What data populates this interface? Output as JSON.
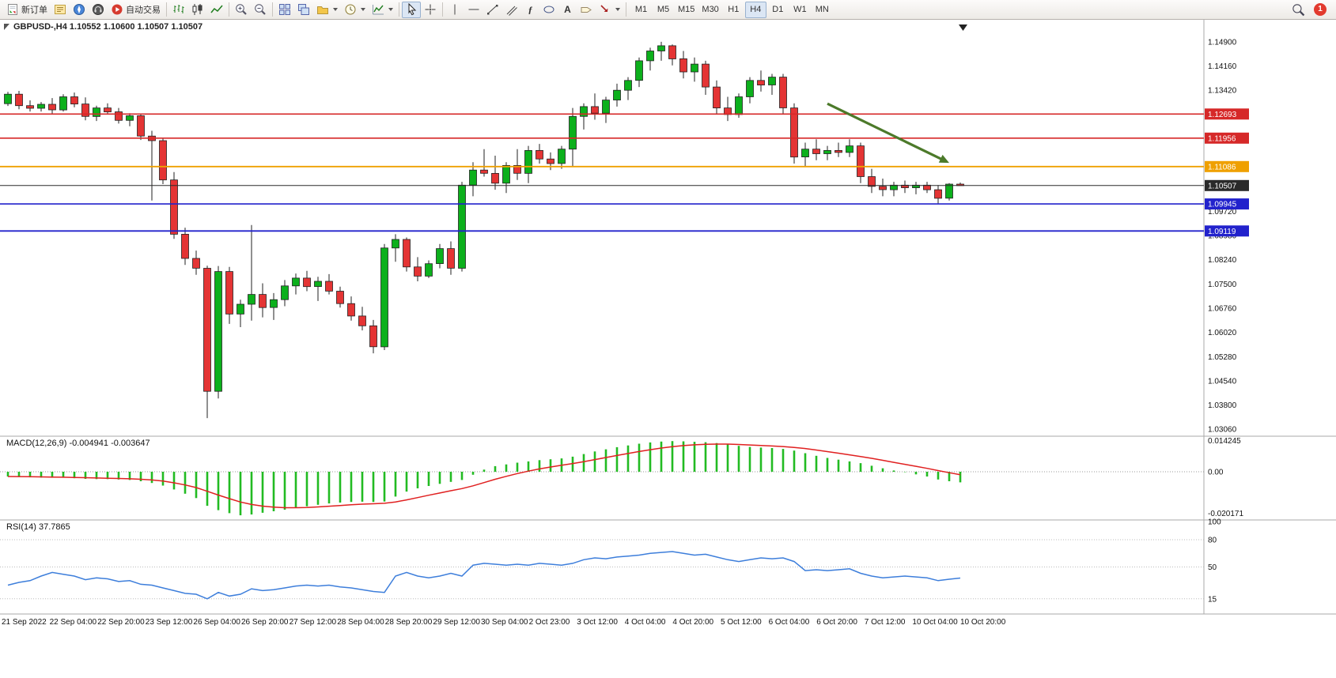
{
  "toolbar": {
    "new_order_label": "新订单",
    "autotrade_label": "自动交易",
    "text_tool_glyph": "A",
    "fibo_glyph": "ƒ",
    "timeframes": [
      "M1",
      "M5",
      "M15",
      "M30",
      "H1",
      "H4",
      "D1",
      "W1",
      "MN"
    ],
    "active_timeframe": "H4",
    "notification_count": "1"
  },
  "main_chart": {
    "title": "GBPUSD-,H4 1.10552 1.10600 1.10507 1.10507"
  },
  "macd_panel": {
    "label": "MACD(12,26,9) -0.004941 -0.003647"
  },
  "rsi_panel": {
    "label": "RSI(14) 37.7865"
  },
  "chart_data": {
    "type": "candlestick",
    "symbol": "GBPUSD-",
    "timeframe": "H4",
    "colors": {
      "up": "#0cb01c",
      "down": "#e43434",
      "wick": "#222222",
      "scale_text": "#111111",
      "separator": "#a8a8a8"
    },
    "price_scale_labels": [
      "1.14900",
      "1.14160",
      "1.13420",
      "1.09720",
      "1.08980",
      "1.08240",
      "1.07500",
      "1.06760",
      "1.06020",
      "1.05280",
      "1.04540",
      "1.03800",
      "1.03060"
    ],
    "price_scale_values": [
      1.149,
      1.1416,
      1.1342,
      1.0972,
      1.0898,
      1.0824,
      1.075,
      1.0676,
      1.0602,
      1.0528,
      1.0454,
      1.038,
      1.0306
    ],
    "hlines": [
      {
        "price": 1.12693,
        "label": "1.12693",
        "color": "#d62828",
        "width": 1.6
      },
      {
        "price": 1.11956,
        "label": "1.11956",
        "color": "#d62828",
        "width": 1.6
      },
      {
        "price": 1.11086,
        "label": "1.11086",
        "color": "#efa000",
        "width": 1.8
      },
      {
        "price": 1.10507,
        "label": "1.10507",
        "color": "#2a2a2a",
        "width": 1.0
      },
      {
        "price": 1.09945,
        "label": "1.09945",
        "color": "#2222cc",
        "width": 1.6
      },
      {
        "price": 1.09119,
        "label": "1.09119",
        "color": "#2222cc",
        "width": 1.8
      }
    ],
    "trend_arrow": {
      "from": {
        "index": 74,
        "price": 1.1301
      },
      "to": {
        "index": 85,
        "price": 1.112
      },
      "color": "#4c7a2a"
    },
    "candles": [
      [
        1.1301,
        1.1337,
        1.1294,
        1.133
      ],
      [
        1.133,
        1.134,
        1.1284,
        1.1295
      ],
      [
        1.1295,
        1.1311,
        1.1277,
        1.1287
      ],
      [
        1.1287,
        1.1306,
        1.1277,
        1.1299
      ],
      [
        1.1299,
        1.1318,
        1.127,
        1.1282
      ],
      [
        1.1282,
        1.133,
        1.1277,
        1.1322
      ],
      [
        1.1322,
        1.1335,
        1.129,
        1.13
      ],
      [
        1.13,
        1.132,
        1.125,
        1.1262
      ],
      [
        1.1262,
        1.1295,
        1.1248,
        1.1288
      ],
      [
        1.1288,
        1.1302,
        1.1268,
        1.1276
      ],
      [
        1.1276,
        1.1288,
        1.124,
        1.125
      ],
      [
        1.125,
        1.1272,
        1.1232,
        1.1264
      ],
      [
        1.1264,
        1.127,
        1.119,
        1.1202
      ],
      [
        1.1202,
        1.1218,
        1.1005,
        1.1188
      ],
      [
        1.1188,
        1.1196,
        1.1055,
        1.1068
      ],
      [
        1.1068,
        1.1092,
        1.0888,
        1.0902
      ],
      [
        1.0902,
        1.0922,
        1.0808,
        1.0828
      ],
      [
        1.0828,
        1.0852,
        1.0778,
        1.0798
      ],
      [
        1.0798,
        1.0806,
        1.034,
        1.0422
      ],
      [
        1.0422,
        1.0805,
        1.04,
        1.0788
      ],
      [
        1.0788,
        1.0802,
        1.0628,
        1.0658
      ],
      [
        1.0658,
        1.0702,
        1.0618,
        1.0688
      ],
      [
        1.0688,
        1.093,
        1.0638,
        1.0718
      ],
      [
        1.0718,
        1.0752,
        1.0648,
        1.0678
      ],
      [
        1.0678,
        1.0722,
        1.064,
        1.0702
      ],
      [
        1.0702,
        1.0762,
        1.0682,
        1.0744
      ],
      [
        1.0744,
        1.0782,
        1.0718,
        1.0768
      ],
      [
        1.0768,
        1.079,
        1.0728,
        1.0742
      ],
      [
        1.0742,
        1.0772,
        1.0698,
        1.0758
      ],
      [
        1.0758,
        1.078,
        1.0718,
        1.0728
      ],
      [
        1.0728,
        1.0742,
        1.0678,
        1.069
      ],
      [
        1.069,
        1.0712,
        1.0638,
        1.0652
      ],
      [
        1.0652,
        1.068,
        1.0608,
        1.0622
      ],
      [
        1.0622,
        1.064,
        1.0538,
        1.0558
      ],
      [
        1.0558,
        1.0872,
        1.0548,
        1.086
      ],
      [
        1.086,
        1.0902,
        1.0818,
        1.0886
      ],
      [
        1.0886,
        1.0892,
        1.0788,
        1.0802
      ],
      [
        1.0802,
        1.0832,
        1.0758,
        1.0774
      ],
      [
        1.0774,
        1.0822,
        1.0768,
        1.0812
      ],
      [
        1.0812,
        1.0872,
        1.0798,
        1.0858
      ],
      [
        1.0858,
        1.088,
        1.0778,
        1.0798
      ],
      [
        1.0798,
        1.1062,
        1.0788,
        1.1052
      ],
      [
        1.1052,
        1.1122,
        1.1018,
        1.1098
      ],
      [
        1.1098,
        1.1162,
        1.1078,
        1.1088
      ],
      [
        1.1088,
        1.1142,
        1.1038,
        1.1058
      ],
      [
        1.1058,
        1.1122,
        1.1028,
        1.1112
      ],
      [
        1.1112,
        1.1162,
        1.1068,
        1.1088
      ],
      [
        1.1088,
        1.1172,
        1.1058,
        1.1158
      ],
      [
        1.1158,
        1.1178,
        1.1118,
        1.1132
      ],
      [
        1.1132,
        1.1152,
        1.1098,
        1.1118
      ],
      [
        1.1118,
        1.1172,
        1.1102,
        1.1162
      ],
      [
        1.1162,
        1.1288,
        1.1108,
        1.1262
      ],
      [
        1.1262,
        1.1302,
        1.1222,
        1.1292
      ],
      [
        1.1292,
        1.1332,
        1.1252,
        1.1272
      ],
      [
        1.1272,
        1.1322,
        1.1242,
        1.1312
      ],
      [
        1.1312,
        1.1362,
        1.1292,
        1.1342
      ],
      [
        1.1342,
        1.1382,
        1.1312,
        1.1372
      ],
      [
        1.1372,
        1.1442,
        1.1352,
        1.1432
      ],
      [
        1.1432,
        1.1472,
        1.1402,
        1.1462
      ],
      [
        1.1462,
        1.149,
        1.1432,
        1.1478
      ],
      [
        1.1478,
        1.1482,
        1.1418,
        1.1438
      ],
      [
        1.1438,
        1.1462,
        1.1378,
        1.1398
      ],
      [
        1.1398,
        1.1442,
        1.1368,
        1.1422
      ],
      [
        1.1422,
        1.1432,
        1.1328,
        1.1352
      ],
      [
        1.1352,
        1.1372,
        1.1268,
        1.1288
      ],
      [
        1.1288,
        1.1322,
        1.1248,
        1.1268
      ],
      [
        1.1268,
        1.1332,
        1.1258,
        1.1322
      ],
      [
        1.1322,
        1.1382,
        1.1302,
        1.1372
      ],
      [
        1.1372,
        1.1402,
        1.1338,
        1.1358
      ],
      [
        1.1358,
        1.1392,
        1.1328,
        1.1382
      ],
      [
        1.1382,
        1.1392,
        1.1268,
        1.1288
      ],
      [
        1.1288,
        1.1302,
        1.1118,
        1.1138
      ],
      [
        1.1138,
        1.1182,
        1.1108,
        1.1162
      ],
      [
        1.1162,
        1.1192,
        1.1128,
        1.1148
      ],
      [
        1.1148,
        1.1172,
        1.1128,
        1.1158
      ],
      [
        1.1158,
        1.1182,
        1.1138,
        1.1152
      ],
      [
        1.1152,
        1.1192,
        1.1138,
        1.1172
      ],
      [
        1.1172,
        1.1182,
        1.1058,
        1.1078
      ],
      [
        1.1078,
        1.1102,
        1.1028,
        1.1048
      ],
      [
        1.1048,
        1.1072,
        1.1018,
        1.1038
      ],
      [
        1.1038,
        1.1062,
        1.1018,
        1.1052
      ],
      [
        1.1052,
        1.1066,
        1.1028,
        1.1044
      ],
      [
        1.1044,
        1.1062,
        1.1024,
        1.1052
      ],
      [
        1.1052,
        1.1062,
        1.1028,
        1.1038
      ],
      [
        1.1038,
        1.1052,
        1.0996,
        1.1012
      ],
      [
        1.1012,
        1.1058,
        1.1005,
        1.1055
      ],
      [
        1.10552,
        1.106,
        1.10507,
        1.10507
      ]
    ],
    "macd": {
      "label_values": [
        "-0.004941",
        "-0.003647"
      ],
      "scale_labels": [
        "0.014245",
        "0.00",
        "-0.020171"
      ],
      "range": {
        "max": 0.014245,
        "min": -0.020171
      },
      "colors": {
        "histogram": "#22bb22",
        "signal": "#e02020",
        "zero_line": "#999999"
      },
      "signal_period": 9,
      "values": [
        -0.0022,
        -0.0024,
        -0.0026,
        -0.0027,
        -0.0028,
        -0.0028,
        -0.003,
        -0.0033,
        -0.0034,
        -0.0034,
        -0.0036,
        -0.0038,
        -0.0044,
        -0.0052,
        -0.0064,
        -0.0082,
        -0.0102,
        -0.0122,
        -0.0158,
        -0.0178,
        -0.0192,
        -0.0202,
        -0.0198,
        -0.019,
        -0.0183,
        -0.0176,
        -0.0168,
        -0.016,
        -0.0153,
        -0.0147,
        -0.0143,
        -0.014,
        -0.0139,
        -0.014,
        -0.0138,
        -0.0115,
        -0.0092,
        -0.0077,
        -0.0066,
        -0.0056,
        -0.0047,
        -0.0038,
        -0.0014,
        0.001,
        0.0026,
        0.0034,
        0.0042,
        0.0048,
        0.0054,
        0.0058,
        0.0062,
        0.007,
        0.0082,
        0.0094,
        0.0104,
        0.0114,
        0.0122,
        0.013,
        0.0136,
        0.014,
        0.0142,
        0.0141,
        0.0139,
        0.0137,
        0.0133,
        0.0127,
        0.012,
        0.0115,
        0.0112,
        0.011,
        0.0106,
        0.0098,
        0.0086,
        0.0074,
        0.0064,
        0.0056,
        0.0048,
        0.004,
        0.0028,
        0.0016,
        0.0006,
        -0.0002,
        -0.0012,
        -0.0022,
        -0.0036,
        -0.0044,
        -0.0049
      ]
    },
    "rsi": {
      "value": 37.7865,
      "scale_labels": [
        "100",
        "80",
        "50",
        "15"
      ],
      "scale_values": [
        100,
        80,
        50,
        15
      ],
      "levels": [
        80,
        50,
        15
      ],
      "color": "#3d7edb",
      "values": [
        30,
        33,
        35,
        40,
        44,
        42,
        40,
        36,
        38,
        37,
        34,
        35,
        31,
        30,
        27,
        24,
        21,
        20,
        15,
        22,
        18,
        20,
        26,
        24,
        25,
        27,
        29,
        30,
        29,
        30,
        28,
        27,
        25,
        23,
        22,
        40,
        44,
        40,
        38,
        40,
        43,
        40,
        52,
        54,
        53,
        52,
        53,
        52,
        54,
        53,
        52,
        54,
        58,
        60,
        59,
        61,
        62,
        63,
        65,
        66,
        67,
        65,
        63,
        64,
        61,
        58,
        56,
        58,
        60,
        59,
        60,
        56,
        46,
        47,
        46,
        47,
        48,
        43,
        40,
        38,
        39,
        40,
        39,
        38,
        35,
        36.5,
        37.8
      ]
    },
    "time_labels": [
      "21 Sep 2022",
      "22 Sep 04:00",
      "22 Sep 20:00",
      "23 Sep 12:00",
      "26 Sep 04:00",
      "26 Sep 20:00",
      "27 Sep 12:00",
      "28 Sep 04:00",
      "28 Sep 20:00",
      "29 Sep 12:00",
      "30 Sep 04:00",
      "2 Oct 23:00",
      "3 Oct 12:00",
      "4 Oct 04:00",
      "4 Oct 20:00",
      "5 Oct 12:00",
      "6 Oct 04:00",
      "6 Oct 20:00",
      "7 Oct 12:00",
      "10 Oct 04:00",
      "10 Oct 20:00"
    ]
  }
}
